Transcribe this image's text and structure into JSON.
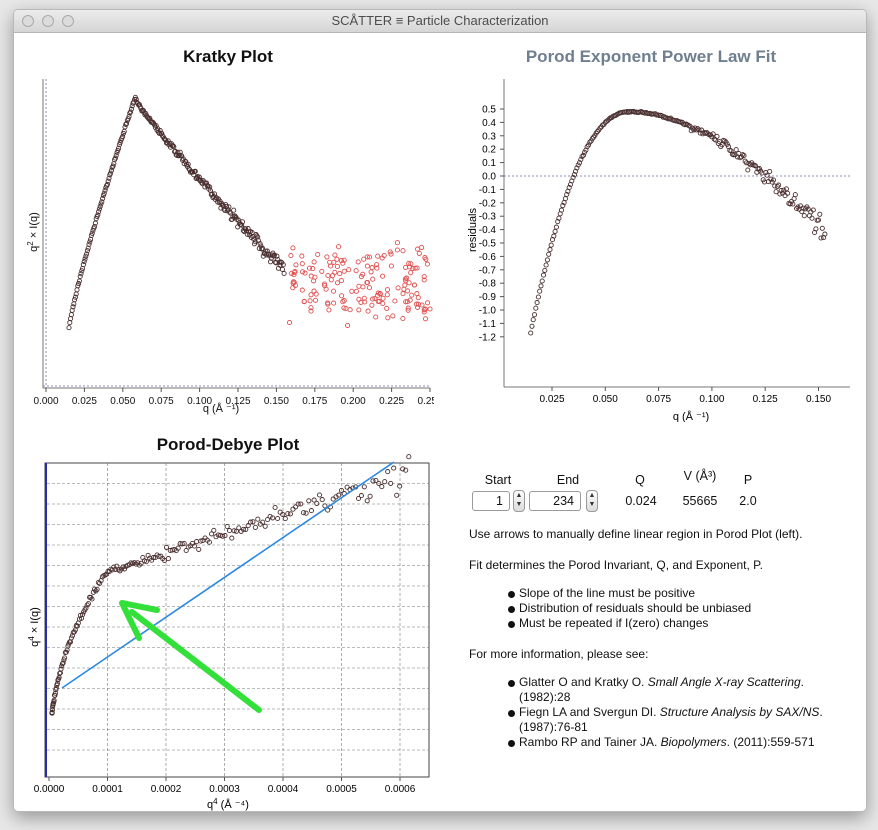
{
  "window": {
    "title": "SCÅTTER ≡ Particle Characterization"
  },
  "kratky": {
    "title": "Kratky Plot",
    "ylabel_q": "q",
    "ylabel_sup": "2",
    "ylabel_rest": " × I(q)",
    "xlabel": "q (Å ⁻¹)",
    "xticks": [
      "0.000",
      "0.025",
      "0.050",
      "0.075",
      "0.100",
      "0.125",
      "0.150",
      "0.175",
      "0.200",
      "0.225",
      "0.250"
    ]
  },
  "porod_fit": {
    "title": "Porod Exponent Power Law Fit",
    "ylabel": "residuals",
    "xlabel": "q (Å ⁻¹)",
    "yticks": [
      "0.5",
      "0.4",
      "0.3",
      "0.2",
      "0.1",
      "0.0",
      "-0.1",
      "-0.2",
      "-0.3",
      "-0.4",
      "-0.5",
      "-0.6",
      "-0.7",
      "-0.8",
      "-0.9",
      "-1.0",
      "-1.1",
      "-1.2"
    ],
    "xticks": [
      "0.025",
      "0.050",
      "0.075",
      "0.100",
      "0.125",
      "0.150"
    ]
  },
  "porod_debye": {
    "title": "Porod-Debye Plot",
    "ylabel_q": "q",
    "ylabel_sup": "4",
    "ylabel_rest": " × I(q)",
    "xlabel_q": "q",
    "xlabel_sup": "4",
    "xlabel_rest": " (Å ⁻⁴)",
    "xticks": [
      "0.0000",
      "0.0001",
      "0.0002",
      "0.0003",
      "0.0004",
      "0.0005",
      "0.0006"
    ]
  },
  "controls": {
    "headers": {
      "start": "Start",
      "end": "End",
      "q": "Q",
      "v": "V (Å³)",
      "p": "P"
    },
    "start_value": "1",
    "end_value": "234",
    "q_value": "0.024",
    "v_value": "55665",
    "p_value": "2.0",
    "stepper_up": "▲",
    "stepper_down": "▼"
  },
  "info": {
    "instruction": "Use arrows to manually define linear region in Porod Plot (left).",
    "fit_text": "Fit determines the Porod Invariant, Q, and Exponent, P.",
    "bullets": [
      "Slope of the line must be positive",
      "Distribution of residuals should be unbiased",
      "Must be repeated if I(zero) changes"
    ],
    "more_info": "For more information, please see:",
    "refs": [
      {
        "authors": "Glatter O and Kratky O. ",
        "title": "Small Angle X-ray Scattering",
        "tail": ".",
        "line2": "(1982):28"
      },
      {
        "authors": "Fiegn LA and Svergun DI. ",
        "title": "Structure Analysis by SAX/NS",
        "tail": ".",
        "line2": "(1987):76-81"
      },
      {
        "authors": "Rambo RP and Tainer JA. ",
        "title": "Biopolymers",
        "tail": ". (2011):559-571",
        "line2": ""
      }
    ]
  },
  "colors": {
    "data_point": "#4a2f2f",
    "excluded_point": "#e05050",
    "fit_line": "#2a88e0",
    "arrow": "#33e03a",
    "porod_title": "#6f7f8f",
    "dashed_ref": "#6a6ab0"
  }
}
